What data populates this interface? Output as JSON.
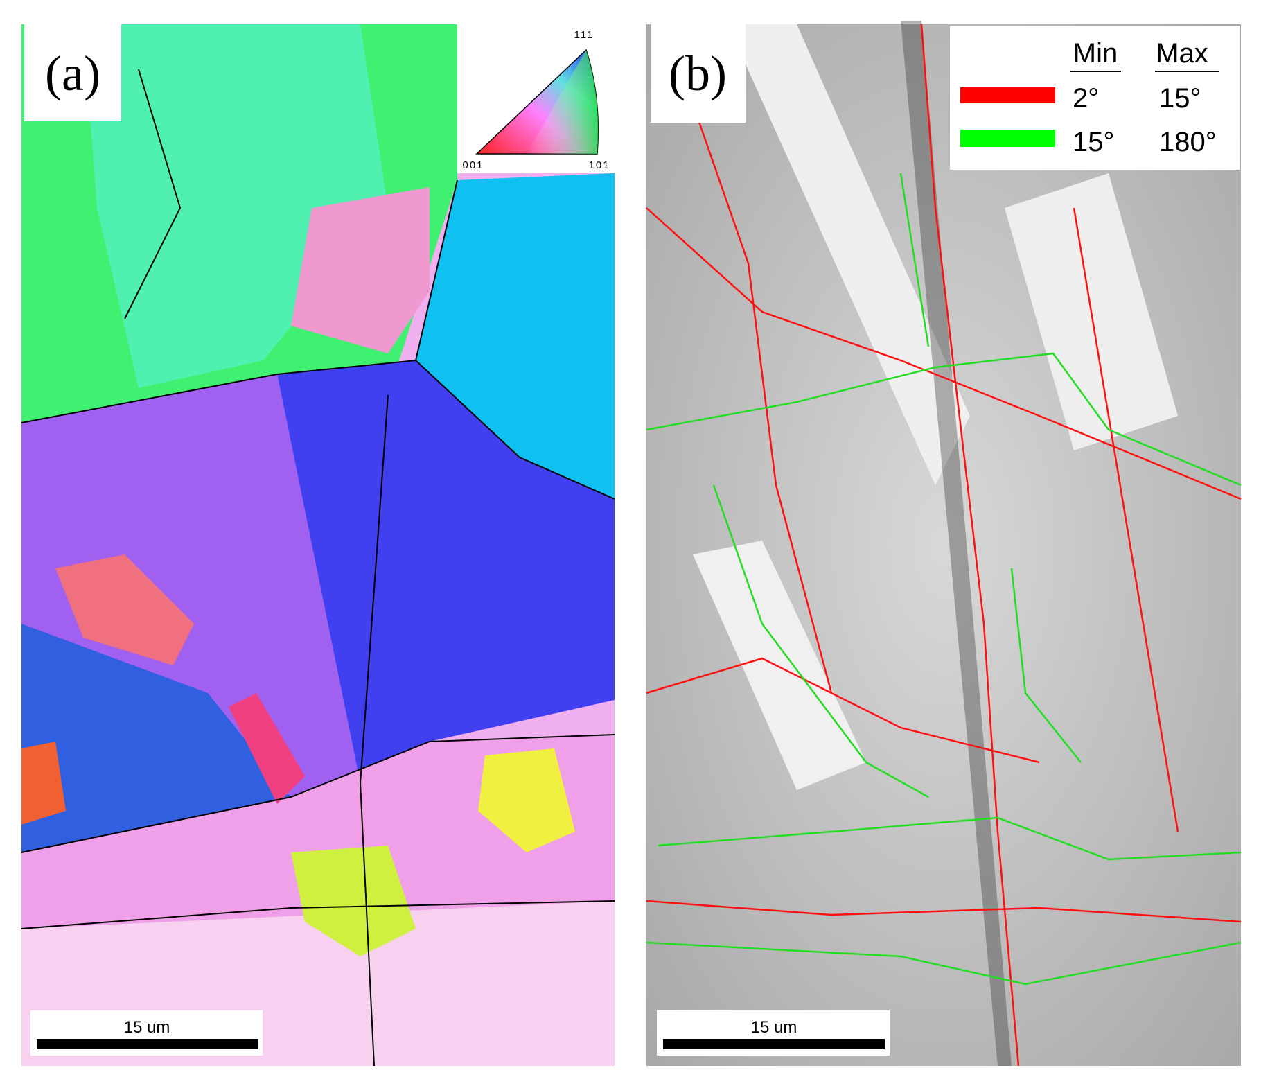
{
  "panels": [
    {
      "label": "(a)",
      "scale_bar": "15 um",
      "ipf_key": {
        "top": "111",
        "left": "001",
        "right": "101"
      }
    },
    {
      "label": "(b)",
      "scale_bar": "15 um",
      "legend": {
        "headers": [
          "Min",
          "Max"
        ],
        "rows": [
          {
            "color": "#ff0000",
            "min": "2°",
            "max": "15°"
          },
          {
            "color": "#00ff00",
            "min": "15°",
            "max": "180°"
          }
        ]
      }
    }
  ]
}
